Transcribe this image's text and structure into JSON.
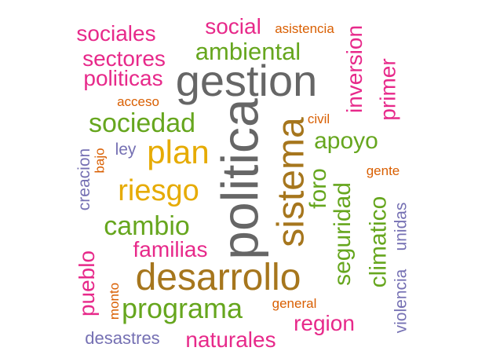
{
  "palette": {
    "gray": "#666666",
    "brown": "#a6761d",
    "mustard": "#e6ab02",
    "green": "#66a61e",
    "magenta": "#e7298a",
    "orange": "#d95f02",
    "purple": "#7570b3"
  },
  "words": [
    {
      "text": "gestion",
      "color": "gray",
      "vertical": false
    },
    {
      "text": "politica",
      "color": "gray",
      "vertical": true
    },
    {
      "text": "desarrollo",
      "color": "brown",
      "vertical": false
    },
    {
      "text": "sistema",
      "color": "brown",
      "vertical": true
    },
    {
      "text": "plan",
      "color": "mustard",
      "vertical": false
    },
    {
      "text": "riesgo",
      "color": "mustard",
      "vertical": false
    },
    {
      "text": "programa",
      "color": "green",
      "vertical": false
    },
    {
      "text": "sociedad",
      "color": "green",
      "vertical": false
    },
    {
      "text": "cambio",
      "color": "green",
      "vertical": false
    },
    {
      "text": "ambiental",
      "color": "green",
      "vertical": false
    },
    {
      "text": "apoyo",
      "color": "green",
      "vertical": false
    },
    {
      "text": "foro",
      "color": "green",
      "vertical": true
    },
    {
      "text": "seguridad",
      "color": "green",
      "vertical": true
    },
    {
      "text": "climatico",
      "color": "green",
      "vertical": true
    },
    {
      "text": "social",
      "color": "magenta",
      "vertical": false
    },
    {
      "text": "sociales",
      "color": "magenta",
      "vertical": false
    },
    {
      "text": "sectores",
      "color": "magenta",
      "vertical": false
    },
    {
      "text": "politicas",
      "color": "magenta",
      "vertical": false
    },
    {
      "text": "familias",
      "color": "magenta",
      "vertical": false
    },
    {
      "text": "naturales",
      "color": "magenta",
      "vertical": false
    },
    {
      "text": "region",
      "color": "magenta",
      "vertical": false
    },
    {
      "text": "inversion",
      "color": "magenta",
      "vertical": true
    },
    {
      "text": "primer",
      "color": "magenta",
      "vertical": true
    },
    {
      "text": "pueblo",
      "color": "magenta",
      "vertical": true
    },
    {
      "text": "asistencia",
      "color": "orange",
      "vertical": false
    },
    {
      "text": "acceso",
      "color": "orange",
      "vertical": false
    },
    {
      "text": "civil",
      "color": "orange",
      "vertical": false
    },
    {
      "text": "gente",
      "color": "orange",
      "vertical": false
    },
    {
      "text": "general",
      "color": "orange",
      "vertical": false
    },
    {
      "text": "bajo",
      "color": "orange",
      "vertical": true
    },
    {
      "text": "monto",
      "color": "orange",
      "vertical": true
    },
    {
      "text": "ley",
      "color": "purple",
      "vertical": false
    },
    {
      "text": "desastres",
      "color": "purple",
      "vertical": false
    },
    {
      "text": "creacion",
      "color": "purple",
      "vertical": true
    },
    {
      "text": "unidas",
      "color": "purple",
      "vertical": true
    },
    {
      "text": "violencia",
      "color": "purple",
      "vertical": true
    }
  ]
}
